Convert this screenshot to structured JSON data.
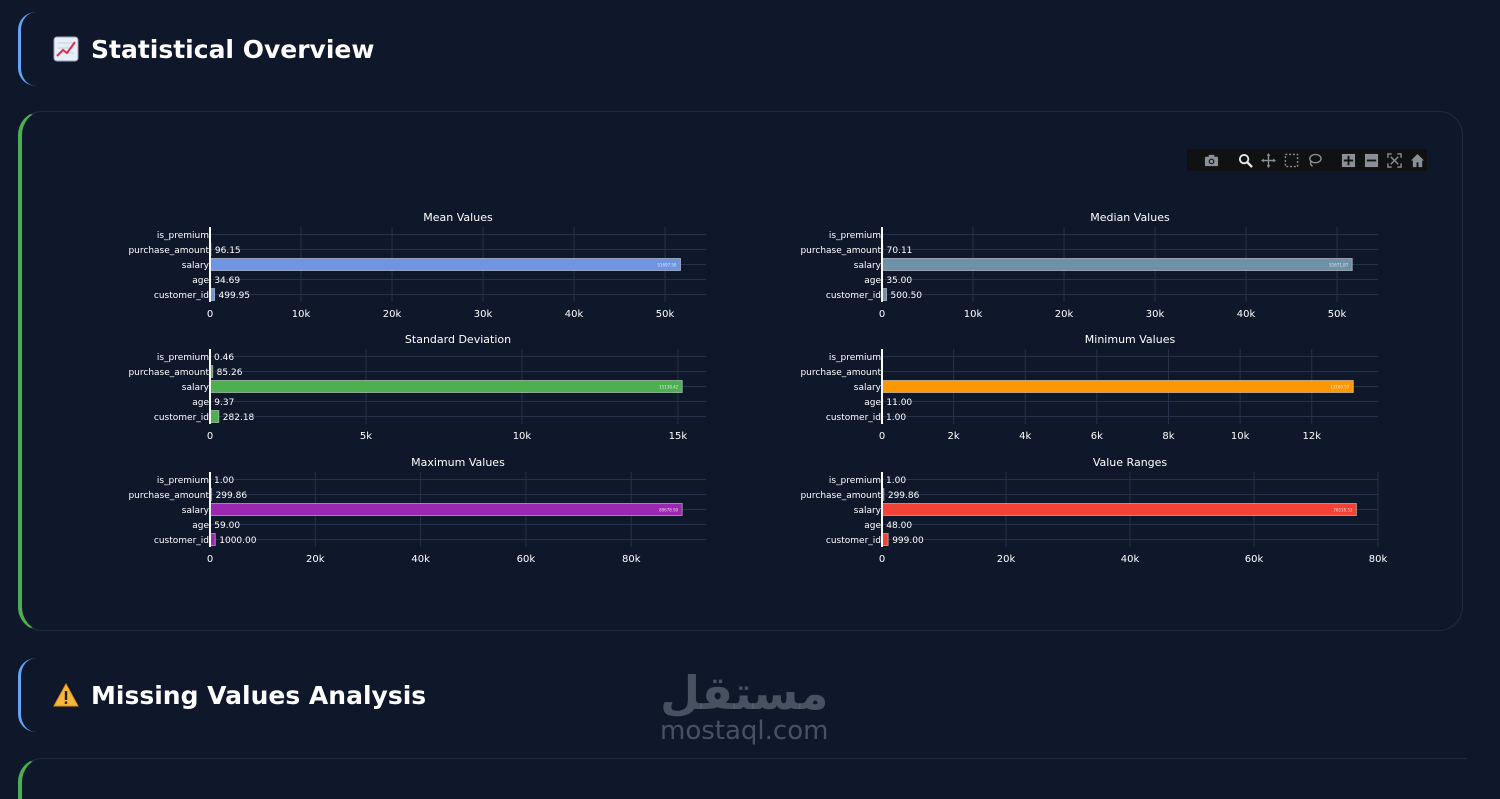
{
  "sections": {
    "stats": {
      "title": "Statistical Overview",
      "icon": "chart-increasing-icon"
    },
    "missing": {
      "title": "Missing Values Analysis",
      "icon": "warning-icon"
    }
  },
  "modebar": {
    "buttons": [
      "camera-icon",
      "zoom-icon",
      "pan-icon",
      "box-select-icon",
      "lasso-icon",
      "zoom-in-icon",
      "zoom-out-icon",
      "autoscale-icon",
      "home-icon"
    ]
  },
  "watermark": {
    "arabic": "مستقل",
    "latin": "mostaql.com"
  },
  "chart_data": [
    {
      "type": "bar",
      "orientation": "horizontal",
      "title": "Mean Values",
      "categories": [
        "customer_id",
        "age",
        "salary",
        "purchase_amount",
        "is_premium"
      ],
      "values": [
        499.95,
        34.69,
        51697.5,
        96.15,
        0.46
      ],
      "value_labels": [
        "499.95",
        "34.69",
        "51697.50",
        "96.15",
        ""
      ],
      "color": "#6f94e3",
      "xticks": [
        0,
        10000,
        20000,
        30000,
        40000,
        50000
      ],
      "xtick_labels": [
        "0",
        "10k",
        "20k",
        "30k",
        "40k",
        "50k"
      ],
      "xlim": [
        0,
        54500
      ]
    },
    {
      "type": "bar",
      "orientation": "horizontal",
      "title": "Median Values",
      "categories": [
        "customer_id",
        "age",
        "salary",
        "purchase_amount",
        "is_premium"
      ],
      "values": [
        500.5,
        35.0,
        51671.87,
        70.11,
        0
      ],
      "value_labels": [
        "500.50",
        "35.00",
        "51671.87",
        "70.11",
        ""
      ],
      "color": "#6f91a8",
      "xticks": [
        0,
        10000,
        20000,
        30000,
        40000,
        50000
      ],
      "xtick_labels": [
        "0",
        "10k",
        "20k",
        "30k",
        "40k",
        "50k"
      ],
      "xlim": [
        0,
        54500
      ]
    },
    {
      "type": "bar",
      "orientation": "horizontal",
      "title": "Standard Deviation",
      "categories": [
        "customer_id",
        "age",
        "salary",
        "purchase_amount",
        "is_premium"
      ],
      "values": [
        282.18,
        9.37,
        15138.42,
        85.26,
        0.46
      ],
      "value_labels": [
        "282.18",
        "9.37",
        "15138.42",
        "85.26",
        "0.46"
      ],
      "color": "#4caf50",
      "xticks": [
        0,
        5000,
        10000,
        15000
      ],
      "xtick_labels": [
        "0",
        "5k",
        "10k",
        "15k"
      ],
      "xlim": [
        0,
        15900
      ]
    },
    {
      "type": "bar",
      "orientation": "horizontal",
      "title": "Minimum Values",
      "categories": [
        "customer_id",
        "age",
        "salary",
        "purchase_amount",
        "is_premium"
      ],
      "values": [
        1.0,
        11.0,
        13160.57,
        0,
        0
      ],
      "value_labels": [
        "1.00",
        "11.00",
        "13160.57",
        "",
        ""
      ],
      "color": "#ff9800",
      "xticks": [
        0,
        2000,
        4000,
        6000,
        8000,
        10000,
        12000
      ],
      "xtick_labels": [
        "0",
        "2k",
        "4k",
        "6k",
        "8k",
        "10k",
        "12k"
      ],
      "xlim": [
        0,
        13850
      ]
    },
    {
      "type": "bar",
      "orientation": "horizontal",
      "title": "Maximum Values",
      "categories": [
        "customer_id",
        "age",
        "salary",
        "purchase_amount",
        "is_premium"
      ],
      "values": [
        1000.0,
        59.0,
        89678.9,
        299.86,
        1.0
      ],
      "value_labels": [
        "1000.00",
        "59.00",
        "89678.90",
        "299.86",
        "1.00"
      ],
      "color": "#9c27b0",
      "xticks": [
        0,
        20000,
        40000,
        60000,
        80000
      ],
      "xtick_labels": [
        "0",
        "20k",
        "40k",
        "60k",
        "80k"
      ],
      "xlim": [
        0,
        94200
      ]
    },
    {
      "type": "bar",
      "orientation": "horizontal",
      "title": "Value Ranges",
      "categories": [
        "customer_id",
        "age",
        "salary",
        "purchase_amount",
        "is_premium"
      ],
      "values": [
        999.0,
        48.0,
        76518.33,
        299.86,
        1.0
      ],
      "value_labels": [
        "999.00",
        "48.00",
        "76518.33",
        "299.86",
        "1.00"
      ],
      "color": "#f44336",
      "xticks": [
        0,
        20000,
        40000,
        60000,
        80000
      ],
      "xtick_labels": [
        "0",
        "20k",
        "40k",
        "60k",
        "80k"
      ],
      "xlim": [
        0,
        80000
      ]
    }
  ]
}
